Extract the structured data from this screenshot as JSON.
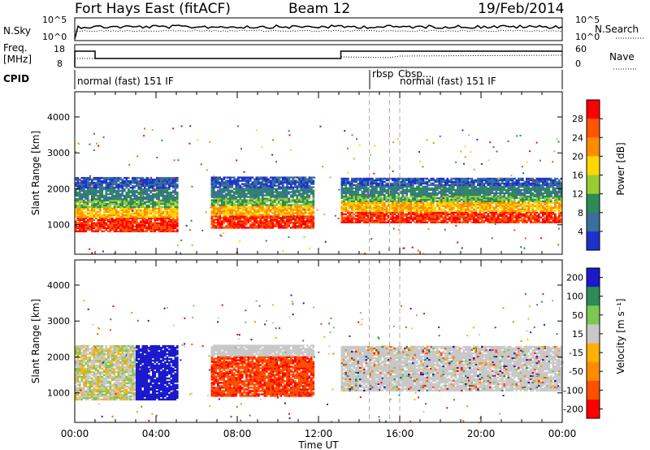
{
  "header": {
    "station": "Fort Hays East (fitACF)",
    "beam": "Beam 12",
    "date": "19/Feb/2014"
  },
  "top_panels": {
    "nsky_label": "N.Sky",
    "nsky_ticks": [
      "10^5",
      "10^0"
    ],
    "nsearch_label": "N.Search",
    "nsearch_ticks": [
      "10^5",
      "10^0"
    ],
    "freq_label_1": "Freq.",
    "freq_label_2": "[MHz]",
    "freq_ticks": [
      "18",
      "8"
    ],
    "nave_label": "Nave",
    "nave_ticks": [
      "60",
      "0"
    ],
    "cpid_label": "CPID",
    "cpid_entries": [
      "normal (fast) 151 IF",
      "rbsp",
      "Cbsp...",
      "normal (fast) 151 IF"
    ]
  },
  "chart_data": [
    {
      "type": "heatmap",
      "name": "power",
      "ylabel": "Slant Range [km]",
      "yticks": [
        1000,
        2000,
        3000,
        4000
      ],
      "xticks": [
        "00:00",
        "04:00",
        "08:00",
        "12:00",
        "16:00",
        "20:00",
        "00:00"
      ],
      "xlim_hours": [
        0,
        24
      ],
      "ylim_km": [
        180,
        4700
      ],
      "colorbar_label": "Power [dB]",
      "colorbar_ticks": [
        "28",
        "24",
        "20",
        "16",
        "12",
        "8",
        "4"
      ],
      "colors": [
        "#ff0000",
        "#ff5500",
        "#ff8c00",
        "#ffd700",
        "#9acd32",
        "#2e8b57",
        "#3a6e9b",
        "#1a33cc"
      ],
      "echo_regions": [
        {
          "t_start": 0.0,
          "t_end": 5.0,
          "r_low": 800,
          "r_high": 2300
        },
        {
          "t_start": 6.7,
          "t_end": 11.7,
          "r_low": 900,
          "r_high": 2300
        },
        {
          "t_start": 13.1,
          "t_end": 24.0,
          "r_low": 1050,
          "r_high": 2300
        }
      ]
    },
    {
      "type": "heatmap",
      "name": "velocity",
      "ylabel": "Slant Range [km]",
      "yticks": [
        1000,
        2000,
        3000,
        4000
      ],
      "xticks": [
        "00:00",
        "04:00",
        "08:00",
        "12:00",
        "16:00",
        "20:00",
        "00:00"
      ],
      "xlabel": "Time UT",
      "xlim_hours": [
        0,
        24
      ],
      "ylim_km": [
        180,
        4700
      ],
      "colorbar_label": "Velocity [m s⁻¹]",
      "colorbar_ticks": [
        "200",
        "100",
        "50",
        "15",
        "-15",
        "-50",
        "-100",
        "-200"
      ],
      "colors": [
        "#1a1acc",
        "#2e8b57",
        "#7cc850",
        "#c8c8c8",
        "#ffb000",
        "#ff8c00",
        "#ff5000",
        "#ff0000"
      ],
      "echo_regions": [
        {
          "t_start": 0.0,
          "t_end": 5.0,
          "r_low": 800,
          "r_high": 2300
        },
        {
          "t_start": 6.7,
          "t_end": 11.7,
          "r_low": 900,
          "r_high": 2300
        },
        {
          "t_start": 13.1,
          "t_end": 24.0,
          "r_low": 1050,
          "r_high": 2300
        }
      ]
    }
  ]
}
